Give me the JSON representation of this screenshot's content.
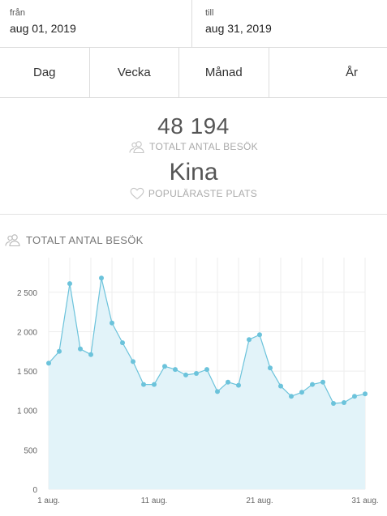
{
  "date_range": {
    "from_label": "från",
    "from_value": "aug 01, 2019",
    "to_label": "till",
    "to_value": "aug 31, 2019"
  },
  "period_tabs": [
    "Dag",
    "Vecka",
    "Månad",
    "År"
  ],
  "summary": {
    "total_visits": "48 194",
    "total_visits_label": "TOTALT ANTAL BESÖK",
    "top_place": "Kina",
    "top_place_label": "POPULÄRASTE PLATS"
  },
  "chart_section": {
    "title": "TOTALT ANTAL BESÖK"
  },
  "icons": {
    "users": "users-icon",
    "heart": "heart-icon"
  },
  "colors": {
    "line": "#6cc3db",
    "fill": "#e2f3f9",
    "grid": "#eeeeee"
  },
  "chart_data": {
    "type": "area",
    "x": [
      1,
      2,
      3,
      4,
      5,
      6,
      7,
      8,
      9,
      10,
      11,
      12,
      13,
      14,
      15,
      16,
      17,
      18,
      19,
      20,
      21,
      22,
      23,
      24,
      25,
      26,
      27,
      28,
      29,
      30,
      31
    ],
    "values": [
      1600,
      1750,
      2610,
      1780,
      1710,
      2680,
      2110,
      1860,
      1620,
      1330,
      1330,
      1560,
      1520,
      1450,
      1470,
      1520,
      1240,
      1360,
      1320,
      1900,
      1960,
      1540,
      1310,
      1180,
      1230,
      1330,
      1360,
      1090,
      1100,
      1180,
      1210
    ],
    "x_tick_labels": [
      "1 aug.",
      "11 aug.",
      "21 aug.",
      "31 aug."
    ],
    "x_tick_positions": [
      1,
      11,
      21,
      31
    ],
    "y_tick_labels": [
      "0",
      "500",
      "1 000",
      "1 500",
      "2 000",
      "2 500"
    ],
    "y_tick_values": [
      0,
      500,
      1000,
      1500,
      2000,
      2500
    ],
    "ylim": [
      0,
      2940
    ],
    "grid": true
  }
}
